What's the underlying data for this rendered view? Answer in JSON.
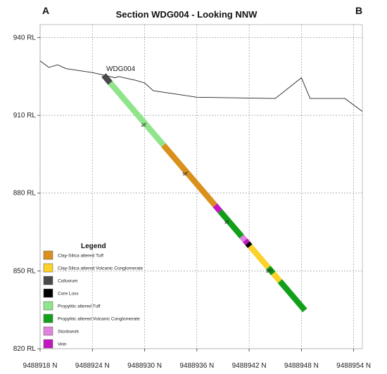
{
  "title": "Section WDG004 - Looking NNW",
  "corner_left": "A",
  "corner_right": "B",
  "hole_label": "WDG004",
  "y_axis": {
    "ticks": [
      {
        "value": 940,
        "label": "940 RL"
      },
      {
        "value": 910,
        "label": "910 RL"
      },
      {
        "value": 880,
        "label": "880 RL"
      },
      {
        "value": 850,
        "label": "850 RL"
      },
      {
        "value": 820,
        "label": "820 RL"
      }
    ]
  },
  "x_axis": {
    "ticks": [
      {
        "value": 9488918,
        "label": "9488918 N"
      },
      {
        "value": 9488924,
        "label": "9488924 N"
      },
      {
        "value": 9488930,
        "label": "9488930 N"
      },
      {
        "value": 9488936,
        "label": "9488936 N"
      },
      {
        "value": 9488942,
        "label": "9488942 N"
      },
      {
        "value": 9488948,
        "label": "9488948 N"
      },
      {
        "value": 9488954,
        "label": "9488954 N"
      }
    ]
  },
  "depth_markers": [
    {
      "depth": 25,
      "label": "25"
    },
    {
      "depth": 50,
      "label": "50"
    },
    {
      "depth": 75,
      "label": "75"
    },
    {
      "depth": 100,
      "label": "100"
    }
  ],
  "legend": {
    "title": "Legend",
    "items": [
      {
        "key": "cst",
        "label": "Clay-Silica altered Tuff",
        "color": "#d9901c"
      },
      {
        "key": "csc",
        "label": "Clay-Silica altered Volcanic Conglomerate",
        "color": "#fbd12a"
      },
      {
        "key": "col",
        "label": "Colluvium",
        "color": "#4a4a4a"
      },
      {
        "key": "cl",
        "label": "Core Loss",
        "color": "#000000"
      },
      {
        "key": "pt",
        "label": "Propylitic altered Tuff",
        "color": "#90e58b"
      },
      {
        "key": "pc",
        "label": "Propylitic altered Volcanic Conglomerate",
        "color": "#129f1a"
      },
      {
        "key": "sw",
        "label": "Stockwork",
        "color": "#df84dc"
      },
      {
        "key": "vn",
        "label": "Vein",
        "color": "#c316c3"
      }
    ]
  },
  "chart_data": {
    "type": "cross-section",
    "title": "Section WDG004 - Looking NNW",
    "x_range": [
      9488918,
      9488955
    ],
    "y_range": [
      820,
      945
    ],
    "topography": [
      [
        9488918,
        931
      ],
      [
        9488919,
        928.5
      ],
      [
        9488920,
        929.5
      ],
      [
        9488921,
        928
      ],
      [
        9488924,
        926.5
      ],
      [
        9488926,
        925
      ],
      [
        9488926.6,
        924.5
      ],
      [
        9488927,
        925
      ],
      [
        9488929,
        923.5
      ],
      [
        9488930,
        922.5
      ],
      [
        9488931,
        919.5
      ],
      [
        9488932,
        919
      ],
      [
        9488936,
        917
      ],
      [
        9488945,
        916.5
      ],
      [
        9488948,
        924.5
      ],
      [
        9488949,
        916.5
      ],
      [
        9488953,
        916.5
      ],
      [
        9488955,
        911.5
      ]
    ],
    "collar": [
      9488925.3,
      925.5
    ],
    "toe": [
      9488948.4,
      834.8
    ],
    "total_depth": 121,
    "intervals": [
      {
        "from": 0,
        "to": 4,
        "unit": "col"
      },
      {
        "from": 4,
        "to": 36,
        "unit": "pt"
      },
      {
        "from": 36,
        "to": 67,
        "unit": "cst"
      },
      {
        "from": 67,
        "to": 70,
        "unit": "vn"
      },
      {
        "from": 70,
        "to": 83,
        "unit": "pc"
      },
      {
        "from": 83,
        "to": 85,
        "unit": "sw"
      },
      {
        "from": 85,
        "to": 86.5,
        "unit": "vn"
      },
      {
        "from": 86.5,
        "to": 88,
        "unit": "cl"
      },
      {
        "from": 88,
        "to": 99,
        "unit": "csc"
      },
      {
        "from": 99,
        "to": 102,
        "unit": "pc"
      },
      {
        "from": 102,
        "to": 106,
        "unit": "csc"
      },
      {
        "from": 106,
        "to": 121,
        "unit": "pc"
      }
    ]
  }
}
